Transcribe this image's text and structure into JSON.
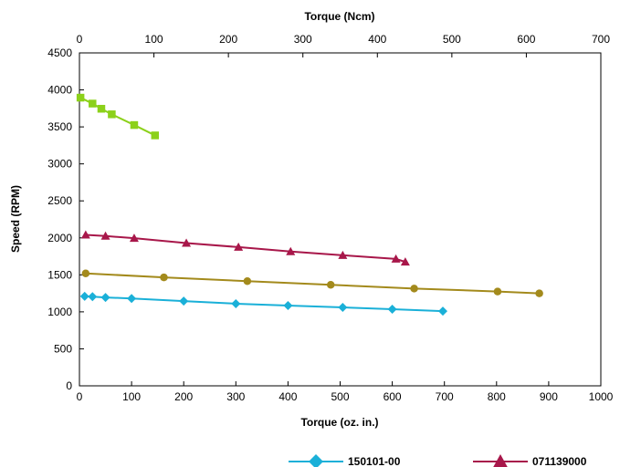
{
  "chart_data": {
    "type": "line",
    "xlabel": "Torque (oz. in.)",
    "x2label": "Torque (Ncm)",
    "ylabel": "Speed (RPM)",
    "xlim": [
      0,
      1000
    ],
    "x2lim": [
      0,
      700
    ],
    "ylim": [
      0,
      4500
    ],
    "x_ticks": [
      "0",
      "100",
      "200",
      "300",
      "400",
      "500",
      "600",
      "700",
      "800",
      "900",
      "1000"
    ],
    "x2_ticks": [
      "0",
      "100",
      "200",
      "300",
      "400",
      "500",
      "600",
      "700"
    ],
    "y_ticks": [
      "0",
      "500",
      "1000",
      "1500",
      "2000",
      "2500",
      "3000",
      "3500",
      "4000",
      "4500"
    ],
    "grid": false,
    "legend_position": "bottom",
    "series": [
      {
        "name": "150101-00",
        "color": "#1ab0d8",
        "marker": "diamond",
        "x": [
          10,
          25,
          50,
          100,
          200,
          300,
          400,
          505,
          600,
          697
        ],
        "y": [
          1210,
          1205,
          1195,
          1180,
          1145,
          1110,
          1085,
          1060,
          1035,
          1010
        ]
      },
      {
        "name": "071139000",
        "color": "#a8174a",
        "marker": "triangle",
        "x": [
          12,
          50,
          105,
          205,
          305,
          405,
          505,
          607,
          625
        ],
        "y": [
          2040,
          2025,
          1995,
          1930,
          1875,
          1815,
          1765,
          1715,
          1675
        ]
      },
      {
        "color": "#a38a1c",
        "marker": "circle",
        "x": [
          12,
          162,
          322,
          482,
          642,
          802,
          882
        ],
        "y": [
          1520,
          1465,
          1415,
          1365,
          1315,
          1275,
          1250
        ]
      },
      {
        "color": "#8cd11a",
        "marker": "square",
        "x": [
          2,
          25,
          42,
          62,
          105,
          145
        ],
        "y": [
          3895,
          3815,
          3745,
          3670,
          3525,
          3385
        ]
      }
    ]
  }
}
